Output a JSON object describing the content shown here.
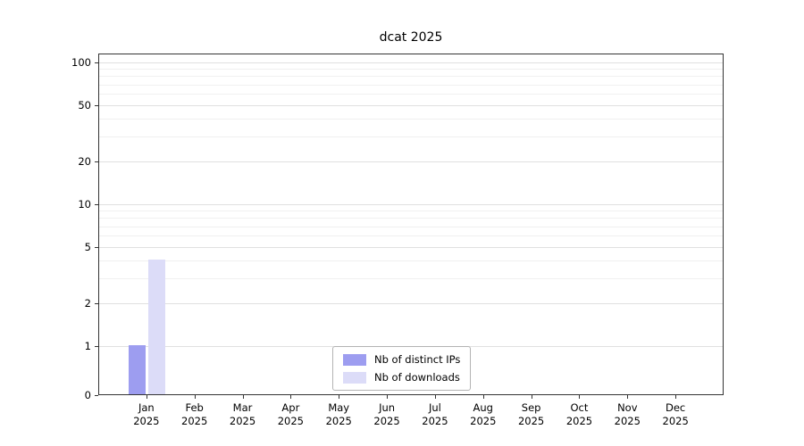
{
  "chart_data": {
    "type": "bar",
    "title": "dcat 2025",
    "categories": [
      "Jan",
      "Feb",
      "Mar",
      "Apr",
      "May",
      "Jun",
      "Jul",
      "Aug",
      "Sep",
      "Oct",
      "Nov",
      "Dec"
    ],
    "category_year": "2025",
    "series": [
      {
        "name": "Nb of distinct IPs",
        "color": "#9d9df0",
        "values": [
          1,
          0,
          0,
          0,
          0,
          0,
          0,
          0,
          0,
          0,
          0,
          0
        ]
      },
      {
        "name": "Nb of downloads",
        "color": "#dcdcf8",
        "values": [
          4,
          0,
          0,
          0,
          0,
          0,
          0,
          0,
          0,
          0,
          0,
          0
        ]
      }
    ],
    "y_ticks": [
      0,
      1,
      2,
      5,
      10,
      20,
      50,
      100
    ],
    "y_minor_ticks": [
      3,
      4,
      6,
      7,
      8,
      9,
      30,
      40,
      60,
      70,
      80,
      90
    ],
    "ylim": [
      0,
      116
    ],
    "xlabel": "",
    "ylabel": "",
    "scale": "symlog",
    "grid": true,
    "legend_position": "lower center"
  }
}
